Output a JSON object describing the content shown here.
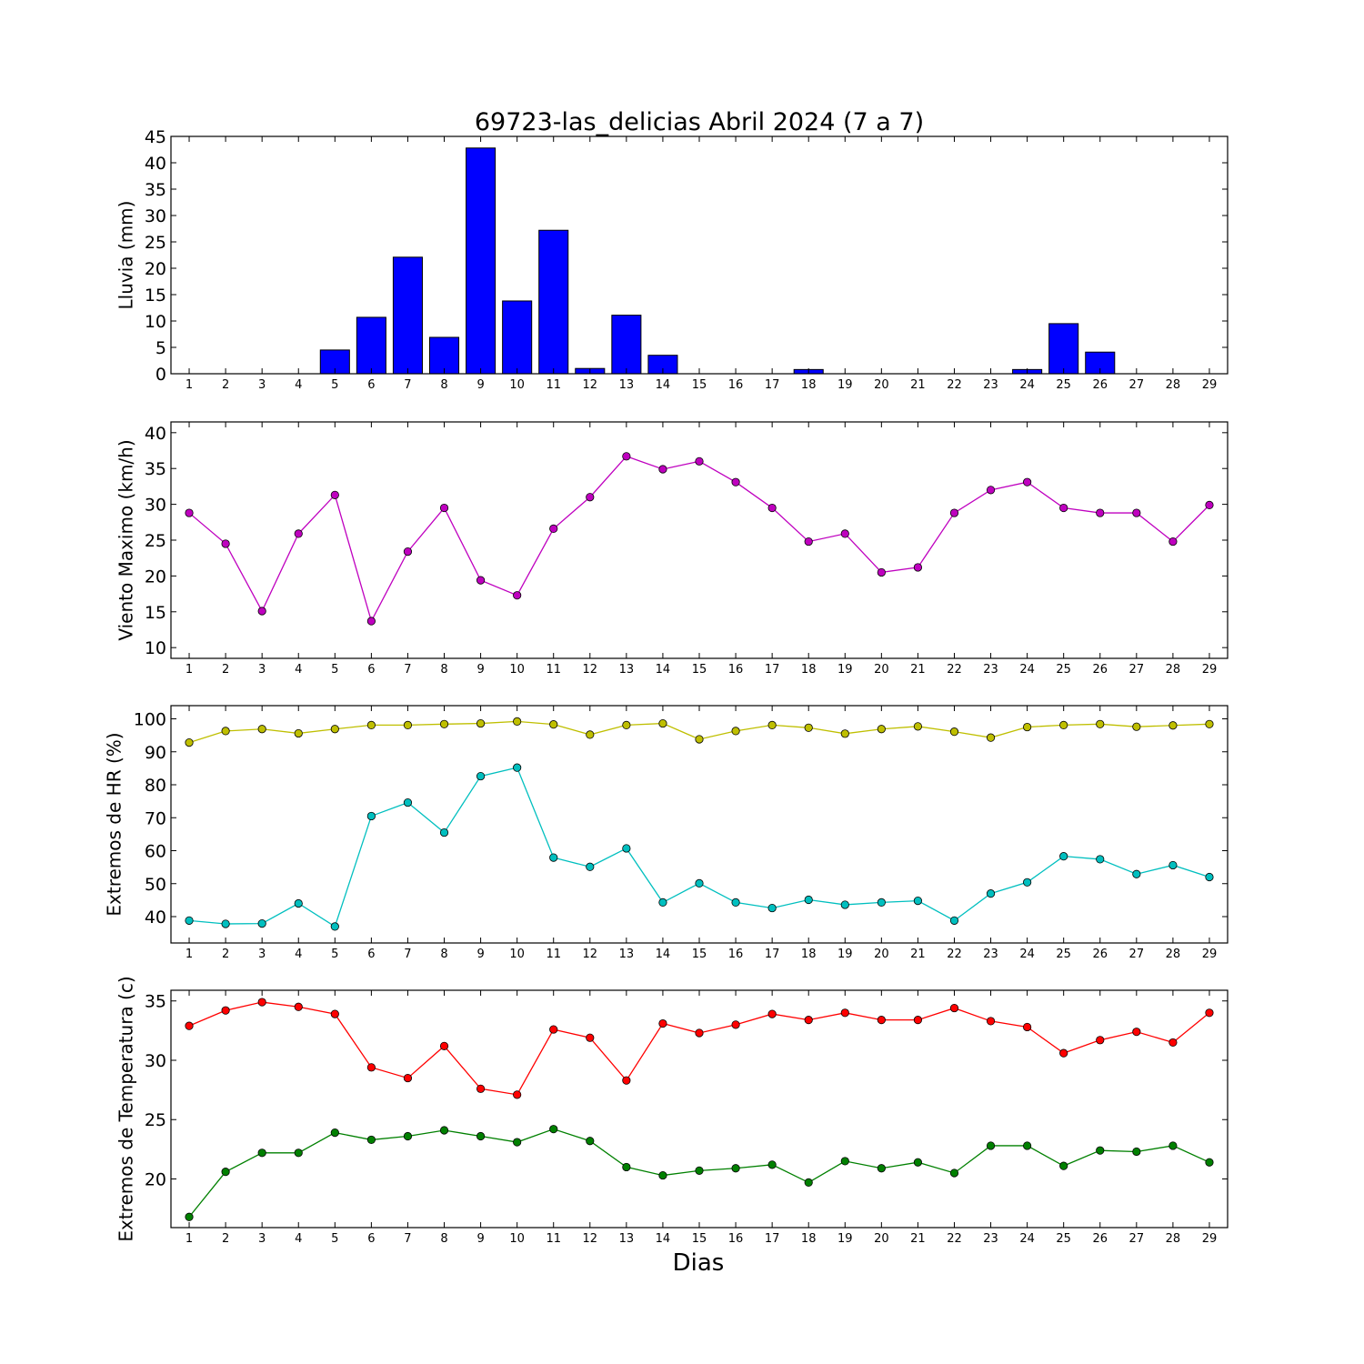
{
  "title": "69723-las_delicias Abril 2024  (7 a 7)",
  "xlabel": "Dias",
  "chart_data": [
    {
      "type": "bar",
      "name": "lluvia",
      "ylabel": "Lluvia (mm)",
      "ylim": [
        0,
        45
      ],
      "yticks": [
        0,
        5,
        10,
        15,
        20,
        25,
        30,
        35,
        40,
        45
      ],
      "x": [
        1,
        2,
        3,
        4,
        5,
        6,
        7,
        8,
        9,
        10,
        11,
        12,
        13,
        14,
        15,
        16,
        17,
        18,
        19,
        20,
        21,
        22,
        23,
        24,
        25,
        26,
        27,
        28,
        29
      ],
      "xlim": [
        0.5,
        29.5
      ],
      "series": [
        {
          "color": "#0000ff",
          "values": [
            0,
            0,
            0,
            0,
            4.5,
            10.7,
            22.1,
            6.9,
            42.8,
            13.8,
            27.2,
            1.0,
            11.1,
            3.5,
            0,
            0,
            0,
            0.8,
            0,
            0,
            0,
            0,
            0,
            0.8,
            9.5,
            4.1,
            0,
            0,
            0
          ]
        }
      ]
    },
    {
      "type": "line",
      "name": "viento",
      "ylabel": "Viento Maximo (km/h)",
      "ylim": [
        8.5,
        41.5
      ],
      "yticks": [
        10,
        15,
        20,
        25,
        30,
        35,
        40
      ],
      "x": [
        1,
        2,
        3,
        4,
        5,
        6,
        7,
        8,
        9,
        10,
        11,
        12,
        13,
        14,
        15,
        16,
        17,
        18,
        19,
        20,
        21,
        22,
        23,
        24,
        25,
        26,
        27,
        28,
        29
      ],
      "xlim": [
        0.5,
        29.5
      ],
      "series": [
        {
          "color": "#bf00bf",
          "values": [
            28.8,
            24.5,
            15.1,
            25.9,
            31.3,
            13.7,
            23.4,
            29.5,
            19.4,
            17.3,
            26.6,
            31.0,
            36.7,
            34.9,
            36.0,
            33.1,
            29.5,
            24.8,
            25.9,
            20.5,
            21.2,
            28.8,
            32.0,
            33.1,
            29.5,
            28.8,
            28.8,
            24.8,
            29.9
          ]
        }
      ]
    },
    {
      "type": "line",
      "name": "humedad",
      "ylabel": "Extremos de HR (%)",
      "ylim": [
        32,
        104
      ],
      "yticks": [
        40,
        50,
        60,
        70,
        80,
        90,
        100
      ],
      "x": [
        1,
        2,
        3,
        4,
        5,
        6,
        7,
        8,
        9,
        10,
        11,
        12,
        13,
        14,
        15,
        16,
        17,
        18,
        19,
        20,
        21,
        22,
        23,
        24,
        25,
        26,
        27,
        28,
        29
      ],
      "xlim": [
        0.5,
        29.5
      ],
      "series": [
        {
          "color": "#bfbf00",
          "values": [
            92.8,
            96.3,
            96.9,
            95.6,
            96.9,
            98.1,
            98.1,
            98.4,
            98.6,
            99.2,
            98.3,
            95.2,
            98.1,
            98.6,
            93.8,
            96.3,
            98.1,
            97.3,
            95.5,
            96.9,
            97.7,
            96.1,
            94.3,
            97.5,
            98.1,
            98.4,
            97.6,
            98.0,
            98.4
          ]
        },
        {
          "color": "#00bfbf",
          "values": [
            38.8,
            37.8,
            37.9,
            44.0,
            37.0,
            70.5,
            74.6,
            65.5,
            82.6,
            85.2,
            57.9,
            55.1,
            60.7,
            44.3,
            50.1,
            44.3,
            42.6,
            45.1,
            43.6,
            44.3,
            44.8,
            38.8,
            47.0,
            50.4,
            58.3,
            57.4,
            52.9,
            55.6,
            52.0
          ]
        }
      ]
    },
    {
      "type": "line",
      "name": "temperatura",
      "ylabel": "Extremos de Temperatura (c)",
      "ylim": [
        15.9,
        35.9
      ],
      "yticks": [
        20,
        25,
        30,
        35
      ],
      "x": [
        1,
        2,
        3,
        4,
        5,
        6,
        7,
        8,
        9,
        10,
        11,
        12,
        13,
        14,
        15,
        16,
        17,
        18,
        19,
        20,
        21,
        22,
        23,
        24,
        25,
        26,
        27,
        28,
        29
      ],
      "xlim": [
        0.5,
        29.5
      ],
      "series": [
        {
          "color": "#ff0000",
          "values": [
            32.9,
            34.2,
            34.9,
            34.5,
            33.9,
            29.4,
            28.5,
            31.2,
            27.6,
            27.1,
            32.6,
            31.9,
            28.3,
            33.1,
            32.3,
            33.0,
            33.9,
            33.4,
            34.0,
            33.4,
            33.4,
            34.4,
            33.3,
            32.8,
            30.6,
            31.7,
            32.4,
            31.5,
            34.0
          ]
        },
        {
          "color": "#008000",
          "values": [
            16.8,
            20.6,
            22.2,
            22.2,
            23.9,
            23.3,
            23.6,
            24.1,
            23.6,
            23.1,
            24.2,
            23.2,
            21.0,
            20.3,
            20.7,
            20.9,
            21.2,
            19.7,
            21.5,
            20.9,
            21.4,
            20.5,
            22.8,
            22.8,
            21.1,
            22.4,
            22.3,
            22.8,
            21.4
          ]
        }
      ]
    }
  ]
}
